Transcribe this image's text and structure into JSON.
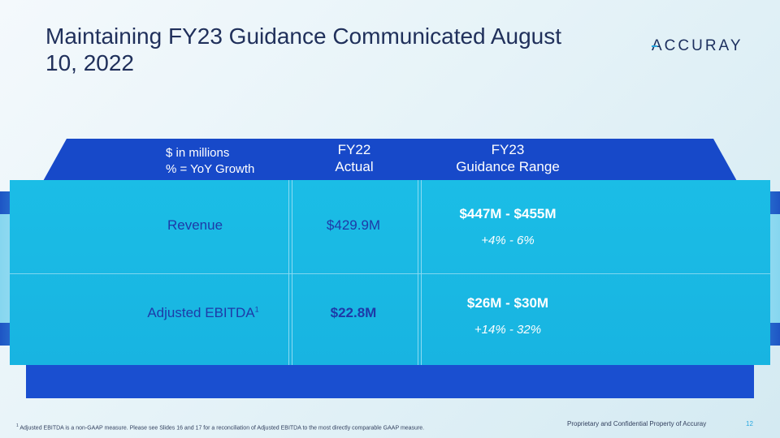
{
  "title": "Maintaining FY23 Guidance Communicated August 10, 2022",
  "logo": {
    "text": "ACCURAY"
  },
  "table": {
    "header_units_line1": "$ in millions",
    "header_units_line2": "% = YoY Growth",
    "col_fy22_line1": "FY22",
    "col_fy22_line2": "Actual",
    "col_fy23_line1": "FY23",
    "col_fy23_line2": "Guidance Range",
    "rows": [
      {
        "label": "Revenue",
        "actual": "$429.9M",
        "guidance": "$447M - $455M",
        "growth": "+4% - 6%"
      },
      {
        "label": "Adjusted EBITDA",
        "footnote_mark": "1",
        "actual": "$22.8M",
        "guidance": "$26M - $30M",
        "growth": "+14% - 32%"
      }
    ]
  },
  "footnote": {
    "mark": "1",
    "text": "Adjusted EBITDA is a non-GAAP measure.  Please see Slides 16 and 17 for a reconciliation of Adjusted EBITDA to the most directly comparable GAAP measure."
  },
  "footer": {
    "confidential": "Proprietary and Confidential Property of Accuray",
    "page_number": "12"
  },
  "colors": {
    "navy_title": "#20305b",
    "frame_blue": "#1749c9",
    "cyan_body": "#1bbde6",
    "label_blue": "#1e3aa8",
    "accent": "#29a8e0"
  }
}
